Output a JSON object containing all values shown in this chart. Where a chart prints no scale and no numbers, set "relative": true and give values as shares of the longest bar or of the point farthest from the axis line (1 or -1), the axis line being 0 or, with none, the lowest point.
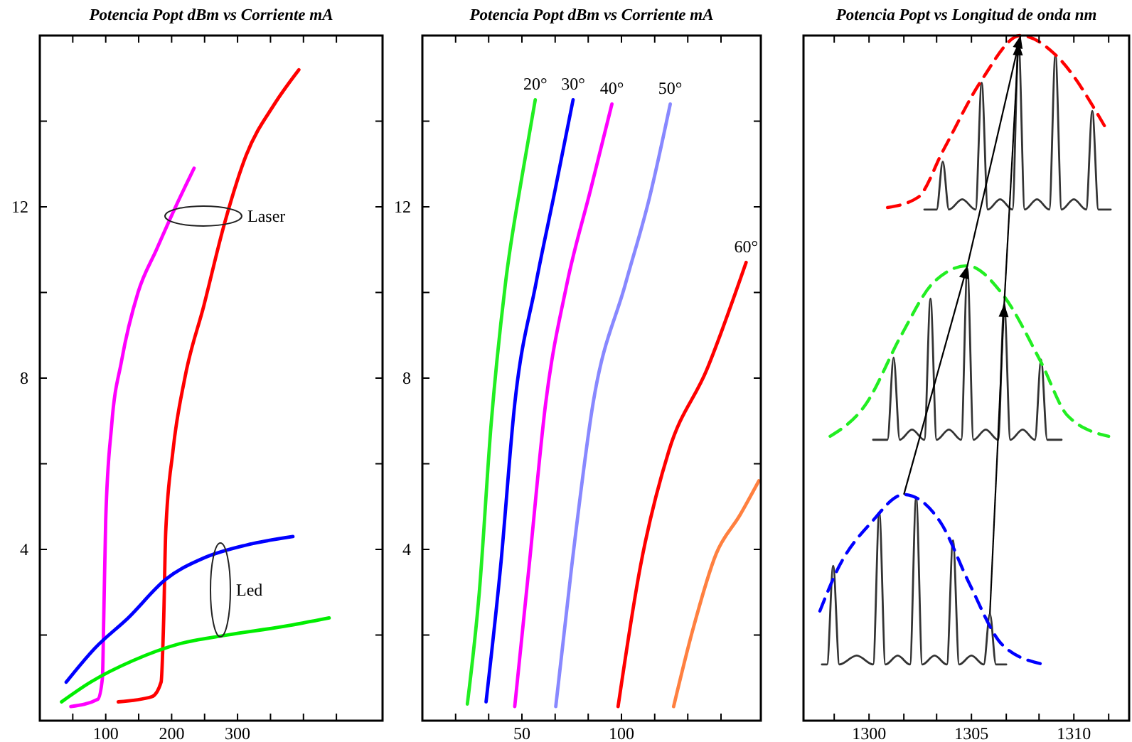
{
  "chart_data": [
    {
      "type": "line",
      "title": "Potencia Popt dBm vs Corriente mA",
      "xlim": [
        0,
        520
      ],
      "ylim": [
        0,
        16
      ],
      "xticks": [
        {
          "value": 50,
          "label": null
        },
        100,
        {
          "value": 150,
          "label": null
        },
        200,
        {
          "value": 250,
          "label": null
        },
        300,
        {
          "value": 350,
          "label": null
        },
        {
          "value": 400,
          "label": null
        },
        {
          "value": 450,
          "label": null
        }
      ],
      "yticks": [
        {
          "value": 2,
          "label": null
        },
        4,
        {
          "value": 6,
          "label": null
        },
        8,
        {
          "value": 10,
          "label": null
        },
        12,
        {
          "value": 14,
          "label": null
        }
      ],
      "annotations": [
        "Laser",
        "Led"
      ],
      "series": [
        {
          "color": "#ff00ff",
          "x": [
            47,
            88,
            95,
            97,
            100,
            109,
            124,
            149,
            177,
            206,
            234
          ],
          "values": [
            0.33,
            0.5,
            1.0,
            2.4,
            4.7,
            6.9,
            8.4,
            10,
            11,
            12,
            12.9
          ]
        },
        {
          "color": "#ff0000",
          "x": [
            119,
            170,
            184,
            188,
            191,
            202,
            220,
            249,
            280,
            313,
            356,
            393
          ],
          "values": [
            0.44,
            0.56,
            0.9,
            2.4,
            4.4,
            6.3,
            8,
            9.7,
            11.6,
            13.2,
            14.4,
            15.2
          ]
        },
        {
          "color": "#0000ff",
          "x": [
            40,
            84,
            134,
            191,
            249,
            313,
            384
          ],
          "values": [
            0.9,
            1.7,
            2.4,
            3.3,
            3.8,
            4.1,
            4.3
          ]
        },
        {
          "color": "#00ee00",
          "x": [
            33,
            77,
            141,
            213,
            284,
            370,
            439
          ],
          "values": [
            0.44,
            0.9,
            1.4,
            1.8,
            2.0,
            2.2,
            2.4
          ]
        }
      ]
    },
    {
      "type": "line",
      "title": "Potencia Popt dBm vs Corriente mA",
      "xlim": [
        0,
        170
      ],
      "ylim": [
        0,
        16
      ],
      "xticks": [
        {
          "value": 16.7,
          "label": null
        },
        {
          "value": 33.3,
          "label": null
        },
        50,
        {
          "value": 66.7,
          "label": null
        },
        {
          "value": 83.3,
          "label": null
        },
        100,
        {
          "value": 116.7,
          "label": null
        },
        {
          "value": 133.3,
          "label": null
        },
        {
          "value": 150,
          "label": null
        }
      ],
      "yticks": [
        {
          "value": 2,
          "label": null
        },
        4,
        {
          "value": 6,
          "label": null
        },
        8,
        {
          "value": 10,
          "label": null
        },
        12,
        {
          "value": 14,
          "label": null
        }
      ],
      "series": [
        {
          "name": "20°",
          "color": "#22ee22",
          "x": [
            22.6,
            28.6,
            34.5,
            41.7,
            50,
            56.7
          ],
          "values": [
            0.39,
            3,
            6.9,
            10.2,
            12.7,
            14.5
          ]
        },
        {
          "name": "30°",
          "color": "#0000ff",
          "x": [
            32,
            39.3,
            46.4,
            57,
            66.7,
            75.7
          ],
          "values": [
            0.44,
            3.6,
            7.4,
            10.2,
            12.4,
            14.5
          ]
        },
        {
          "name": "40°",
          "color": "#ff00ff",
          "x": [
            46.4,
            53.6,
            61.9,
            72.6,
            84.5,
            95.2
          ],
          "values": [
            0.33,
            3.6,
            7.4,
            10.2,
            12.4,
            14.4
          ]
        },
        {
          "name": "50°",
          "color": "#8888ff",
          "x": [
            67,
            75,
            85.7,
            102,
            114,
            124.5
          ],
          "values": [
            0.33,
            3.6,
            7.4,
            10.2,
            12.2,
            14.4
          ]
        },
        {
          "name": "60°",
          "color": "#ff0000",
          "x": [
            98.3,
            109.5,
            123.8,
            142.9,
            162.6
          ],
          "values": [
            0.33,
            3.6,
            6.3,
            8.2,
            10.7
          ]
        },
        {
          "color": "#ff8040",
          "x": [
            126.2,
            135.7,
            147.6,
            159.5,
            169
          ],
          "values": [
            0.33,
            2.1,
            3.9,
            4.8,
            5.6
          ]
        }
      ]
    },
    {
      "type": "line",
      "title": "Potencia Popt vs Longitud de onda nm",
      "relative": true,
      "tick_labels": "x",
      "xlim": [
        1296.8,
        1312.7
      ],
      "xticks": [
        {
          "value": 1298.3,
          "label": null
        },
        1300,
        {
          "value": 1301.7,
          "label": null
        },
        {
          "value": 1303.3,
          "label": null
        },
        1305,
        {
          "value": 1306.7,
          "label": null
        },
        {
          "value": 1308.3,
          "label": null
        },
        1310,
        {
          "value": 1311.7,
          "label": null
        }
      ],
      "series": [
        {
          "color": "#333333",
          "x": [
            1297.7,
            1297.95,
            1298.25,
            1298.55,
            1299.4,
            1300.2,
            1300.5,
            1300.8,
            1301.4,
            1302.0,
            1302.3,
            1302.6,
            1303.2,
            1303.8,
            1304.1,
            1304.4,
            1305.0,
            1305.6,
            1305.9,
            1306.2,
            1306.7
          ],
          "values": [
            0.082,
            0.082,
            0.226,
            0.082,
            0.095,
            0.082,
            0.304,
            0.082,
            0.095,
            0.082,
            0.326,
            0.082,
            0.095,
            0.082,
            0.263,
            0.082,
            0.095,
            0.082,
            0.156,
            0.082,
            0.082
          ]
        },
        {
          "color": "#333333",
          "x": [
            1300.2,
            1300.9,
            1301.2,
            1301.5,
            1302.1,
            1302.7,
            1303.0,
            1303.3,
            1303.9,
            1304.5,
            1304.8,
            1305.1,
            1305.7,
            1306.3,
            1306.6,
            1306.9,
            1307.5,
            1308.1,
            1308.4,
            1308.7,
            1309.4
          ],
          "values": [
            0.41,
            0.41,
            0.53,
            0.41,
            0.425,
            0.41,
            0.616,
            0.41,
            0.425,
            0.41,
            0.66,
            0.41,
            0.425,
            0.41,
            0.608,
            0.41,
            0.425,
            0.41,
            0.527,
            0.41,
            0.41
          ]
        },
        {
          "color": "#333333",
          "x": [
            1302.7,
            1303.3,
            1303.6,
            1303.9,
            1304.55,
            1305.2,
            1305.5,
            1305.8,
            1306.4,
            1307.0,
            1307.3,
            1307.6,
            1308.2,
            1308.8,
            1309.1,
            1309.4,
            1310.0,
            1310.6,
            1310.9,
            1311.2,
            1311.8
          ],
          "values": [
            0.746,
            0.746,
            0.816,
            0.746,
            0.761,
            0.746,
            0.931,
            0.746,
            0.761,
            0.746,
            0.99,
            0.746,
            0.761,
            0.746,
            0.972,
            0.746,
            0.761,
            0.746,
            0.89,
            0.746,
            0.746
          ]
        },
        {
          "color": "#0000ff",
          "line_style": "dashed",
          "x": [
            1297.6,
            1298.5,
            1300.1,
            1301.7,
            1303.5,
            1304.9,
            1306.5,
            1308.4
          ],
          "values": [
            0.16,
            0.223,
            0.289,
            0.33,
            0.289,
            0.2,
            0.111,
            0.083
          ]
        },
        {
          "color": "#22ee22",
          "line_style": "dashed",
          "x": [
            1298.1,
            1299.8,
            1301.6,
            1303.1,
            1304.8,
            1306.5,
            1308.4,
            1309.7,
            1311.7
          ],
          "values": [
            0.415,
            0.46,
            0.564,
            0.638,
            0.664,
            0.623,
            0.523,
            0.445,
            0.415
          ]
        },
        {
          "color": "#ff0000",
          "line_style": "dashed",
          "x": [
            1300.9,
            1302.4,
            1303.6,
            1305.5,
            1307.4,
            1309.1,
            1311.5
          ],
          "values": [
            0.749,
            0.764,
            0.831,
            0.935,
            1.0,
            0.972,
            0.868
          ]
        }
      ]
    }
  ]
}
